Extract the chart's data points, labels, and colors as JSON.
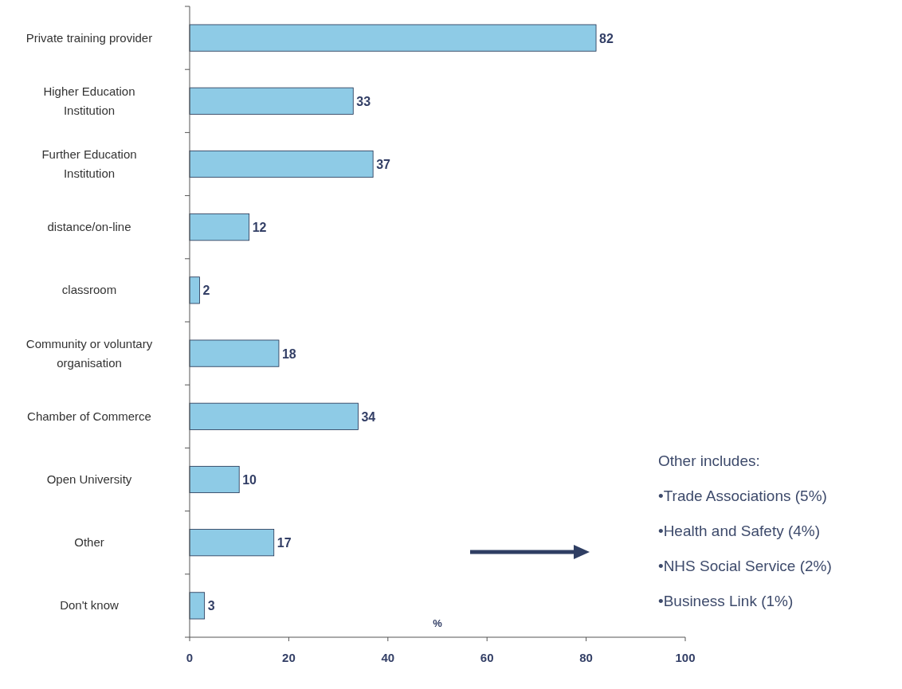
{
  "chart_data": {
    "type": "bar",
    "orientation": "horizontal",
    "categories": [
      "Private training provider",
      "Higher Education Institution",
      "Further Education Institution",
      "distance/on-line",
      "classroom",
      "Community or voluntary organisation",
      "Chamber of Commerce",
      "Open University",
      "Other",
      "Don't know"
    ],
    "values": [
      82,
      33,
      37,
      12,
      2,
      18,
      34,
      10,
      17,
      3
    ],
    "color": "#8ecbe6",
    "xlim": [
      0,
      100
    ],
    "xticks": [
      0,
      20,
      40,
      60,
      80,
      100
    ],
    "xlabel": "%",
    "data_labels": true,
    "grid": false,
    "annotations": [
      "Other includes:",
      "•Trade Associations (5%)",
      "•Health and Safety (4%)",
      "•NHS Social Service (2%)",
      "•Business Link (1%)"
    ]
  }
}
